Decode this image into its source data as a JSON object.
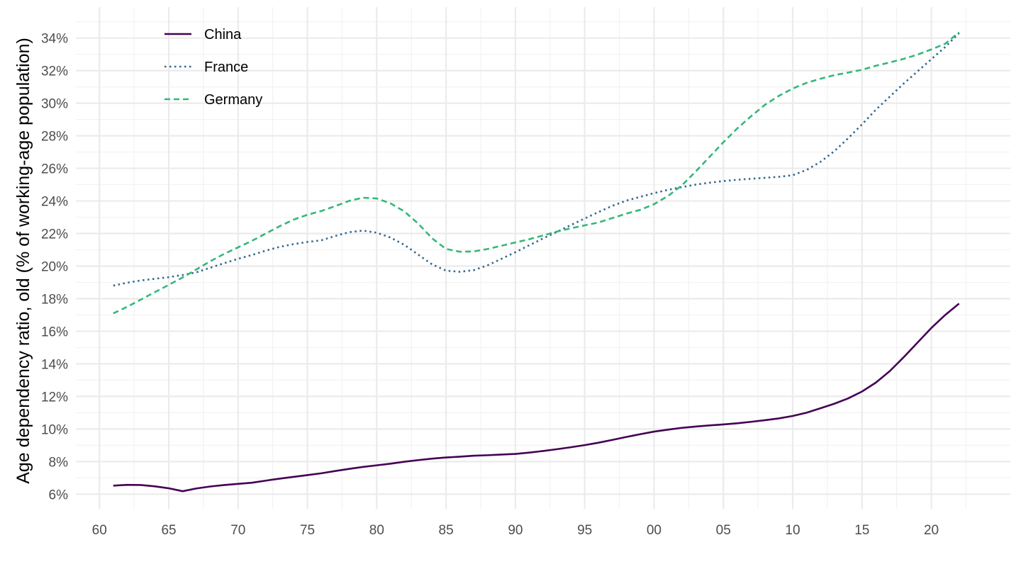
{
  "chart_data": {
    "type": "line",
    "title": "",
    "xlabel": "",
    "ylabel": "Age dependency ratio, old (% of working-age population)",
    "xlim": [
      1958.3,
      2025.7
    ],
    "ylim": [
      5.1,
      35.9
    ],
    "grid": true,
    "legend_position": "top-left",
    "x_ticks": [
      {
        "value": 1960,
        "label": "60"
      },
      {
        "value": 1965,
        "label": "65"
      },
      {
        "value": 1970,
        "label": "70"
      },
      {
        "value": 1975,
        "label": "75"
      },
      {
        "value": 1980,
        "label": "80"
      },
      {
        "value": 1985,
        "label": "85"
      },
      {
        "value": 1990,
        "label": "90"
      },
      {
        "value": 1995,
        "label": "95"
      },
      {
        "value": 2000,
        "label": "00"
      },
      {
        "value": 2005,
        "label": "05"
      },
      {
        "value": 2010,
        "label": "10"
      },
      {
        "value": 2015,
        "label": "15"
      },
      {
        "value": 2020,
        "label": "20"
      }
    ],
    "y_ticks": [
      {
        "value": 6,
        "label": "6%"
      },
      {
        "value": 8,
        "label": "8%"
      },
      {
        "value": 10,
        "label": "10%"
      },
      {
        "value": 12,
        "label": "12%"
      },
      {
        "value": 14,
        "label": "14%"
      },
      {
        "value": 16,
        "label": "16%"
      },
      {
        "value": 18,
        "label": "18%"
      },
      {
        "value": 20,
        "label": "20%"
      },
      {
        "value": 22,
        "label": "22%"
      },
      {
        "value": 24,
        "label": "24%"
      },
      {
        "value": 26,
        "label": "26%"
      },
      {
        "value": 28,
        "label": "28%"
      },
      {
        "value": 30,
        "label": "30%"
      },
      {
        "value": 32,
        "label": "32%"
      },
      {
        "value": 34,
        "label": "34%"
      }
    ],
    "x": [
      1961,
      1962,
      1963,
      1964,
      1965,
      1966,
      1967,
      1968,
      1969,
      1970,
      1971,
      1972,
      1973,
      1974,
      1975,
      1976,
      1977,
      1978,
      1979,
      1980,
      1981,
      1982,
      1983,
      1984,
      1985,
      1986,
      1987,
      1988,
      1989,
      1990,
      1991,
      1992,
      1993,
      1994,
      1995,
      1996,
      1997,
      1998,
      1999,
      2000,
      2001,
      2002,
      2003,
      2004,
      2005,
      2006,
      2007,
      2008,
      2009,
      2010,
      2011,
      2012,
      2013,
      2014,
      2015,
      2016,
      2017,
      2018,
      2019,
      2020,
      2021,
      2022
    ],
    "series": [
      {
        "name": "China",
        "color": "#440154",
        "dash": "solid",
        "values": [
          6.52,
          6.57,
          6.56,
          6.48,
          6.36,
          6.18,
          6.35,
          6.47,
          6.56,
          6.63,
          6.7,
          6.83,
          6.95,
          7.06,
          7.17,
          7.28,
          7.42,
          7.55,
          7.67,
          7.77,
          7.87,
          7.99,
          8.09,
          8.18,
          8.25,
          8.3,
          8.36,
          8.39,
          8.43,
          8.47,
          8.55,
          8.65,
          8.76,
          8.88,
          9.01,
          9.16,
          9.33,
          9.51,
          9.68,
          9.84,
          9.96,
          10.07,
          10.15,
          10.22,
          10.28,
          10.35,
          10.44,
          10.54,
          10.65,
          10.8,
          11.0,
          11.27,
          11.55,
          11.88,
          12.3,
          12.85,
          13.55,
          14.4,
          15.3,
          16.2,
          17.0,
          17.7
        ]
      },
      {
        "name": "France",
        "color": "#31688E",
        "dash": "dotted",
        "values": [
          18.8,
          18.98,
          19.12,
          19.22,
          19.32,
          19.45,
          19.62,
          19.9,
          20.18,
          20.45,
          20.68,
          20.95,
          21.18,
          21.35,
          21.48,
          21.58,
          21.85,
          22.08,
          22.18,
          22.05,
          21.75,
          21.3,
          20.7,
          20.1,
          19.72,
          19.65,
          19.75,
          20.05,
          20.45,
          20.85,
          21.28,
          21.7,
          22.1,
          22.52,
          22.92,
          23.32,
          23.7,
          24.02,
          24.25,
          24.48,
          24.68,
          24.85,
          25.0,
          25.12,
          25.22,
          25.3,
          25.36,
          25.42,
          25.48,
          25.58,
          25.9,
          26.4,
          27.05,
          27.85,
          28.7,
          29.6,
          30.4,
          31.2,
          31.95,
          32.7,
          33.45,
          34.3
        ]
      },
      {
        "name": "Germany",
        "color": "#35B779",
        "dash": "dashed",
        "values": [
          17.1,
          17.5,
          17.95,
          18.4,
          18.85,
          19.3,
          19.8,
          20.3,
          20.75,
          21.15,
          21.55,
          22.0,
          22.45,
          22.85,
          23.15,
          23.38,
          23.68,
          24.0,
          24.2,
          24.15,
          23.85,
          23.35,
          22.6,
          21.7,
          21.05,
          20.88,
          20.9,
          21.05,
          21.25,
          21.45,
          21.65,
          21.88,
          22.12,
          22.32,
          22.5,
          22.68,
          22.95,
          23.22,
          23.45,
          23.8,
          24.3,
          24.95,
          25.8,
          26.7,
          27.6,
          28.45,
          29.2,
          29.9,
          30.45,
          30.9,
          31.25,
          31.5,
          31.72,
          31.88,
          32.05,
          32.3,
          32.5,
          32.72,
          32.98,
          33.3,
          33.65,
          34.35
        ]
      }
    ]
  }
}
